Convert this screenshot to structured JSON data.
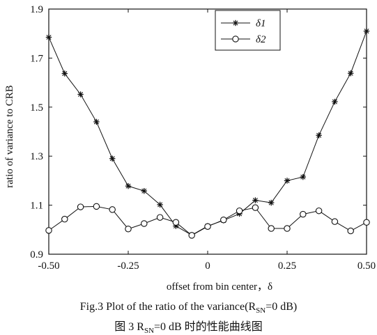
{
  "chart_data": {
    "type": "line",
    "xlabel": "offset from bin center，δ",
    "ylabel": "ratio of variance to CRB",
    "xlim": [
      -0.5,
      0.5
    ],
    "ylim": [
      0.9,
      1.9
    ],
    "xticks": [
      "-0.50",
      "-0.25",
      "0",
      "0.25",
      "0.50"
    ],
    "xtick_values": [
      -0.5,
      -0.25,
      0,
      0.25,
      0.5
    ],
    "yticks": [
      "0.9",
      "1.1",
      "1.3",
      "1.5",
      "1.7",
      "1.9"
    ],
    "ytick_values": [
      0.9,
      1.1,
      1.3,
      1.5,
      1.7,
      1.9
    ],
    "grid": false,
    "legend_position": "top-right",
    "x": [
      -0.5,
      -0.45,
      -0.4,
      -0.35,
      -0.3,
      -0.25,
      -0.2,
      -0.15,
      -0.1,
      -0.05,
      0,
      0.05,
      0.1,
      0.15,
      0.2,
      0.25,
      0.3,
      0.35,
      0.4,
      0.45,
      0.5
    ],
    "series": [
      {
        "name": "δ1",
        "marker": "star",
        "values": [
          1.785,
          1.637,
          1.552,
          1.44,
          1.29,
          1.178,
          1.158,
          1.102,
          1.015,
          0.978,
          1.015,
          1.038,
          1.065,
          1.12,
          1.11,
          1.2,
          1.215,
          1.385,
          1.522,
          1.638,
          1.81
        ]
      },
      {
        "name": "δ2",
        "marker": "circle",
        "values": [
          0.997,
          1.043,
          1.093,
          1.095,
          1.082,
          1.003,
          1.025,
          1.05,
          1.03,
          0.977,
          1.013,
          1.04,
          1.077,
          1.09,
          1.005,
          1.005,
          1.063,
          1.077,
          1.033,
          0.995,
          1.03
        ]
      }
    ]
  },
  "caption": {
    "line1": "Fig.3 Plot of the ratio of the variance(R",
    "line1_sub": "SN",
    "line1_tail": "=0 dB)",
    "line2_prefix": "图 3 R",
    "line2_sub": "SN",
    "line2_tail": "=0 dB 时的性能曲线图"
  }
}
